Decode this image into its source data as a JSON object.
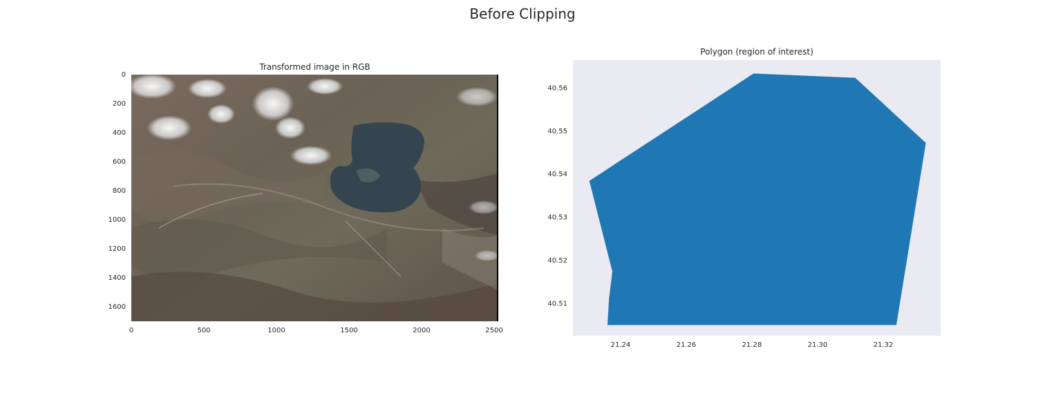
{
  "figure": {
    "suptitle": "Before Clipping"
  },
  "colors": {
    "polygon_fill": "#1f77b4",
    "axes_face": "#eaeaf2",
    "lake": "#344550",
    "terrain": "#6a5e55",
    "snow": "#f2f4f6"
  },
  "chart_data": [
    {
      "type": "image",
      "title": "Transformed image in RGB",
      "xlabel": "",
      "ylabel": "",
      "xlim": [
        0,
        2535
      ],
      "ylim": [
        1700,
        0
      ],
      "xticks": [
        0,
        500,
        1000,
        1500,
        2000,
        2500
      ],
      "yticks": [
        0,
        200,
        400,
        600,
        800,
        1000,
        1200,
        1400,
        1600
      ],
      "grid": false,
      "content": "satellite RGB composite with lake"
    },
    {
      "type": "area",
      "title": "Polygon (region of interest)",
      "xlabel": "",
      "ylabel": "",
      "xlim": [
        21.2255,
        21.3375
      ],
      "ylim": [
        40.5024,
        40.5663
      ],
      "xticks": [
        21.24,
        21.26,
        21.28,
        21.3,
        21.32
      ],
      "xtick_labels": [
        "21.24",
        "21.26",
        "21.28",
        "21.30",
        "21.32"
      ],
      "yticks": [
        40.51,
        40.52,
        40.53,
        40.54,
        40.55,
        40.56
      ],
      "yticks_labels": [
        "40.51",
        "40.52",
        "40.53",
        "40.54",
        "40.55",
        "40.56"
      ],
      "grid": false,
      "polygon": {
        "x": [
          21.2305,
          21.2805,
          21.3115,
          21.333,
          21.324,
          21.236,
          21.2365,
          21.2375,
          21.2305
        ],
        "y": [
          40.5383,
          40.5632,
          40.5622,
          40.5471,
          40.5049,
          40.5049,
          40.511,
          40.5173,
          40.5383
        ]
      }
    }
  ]
}
